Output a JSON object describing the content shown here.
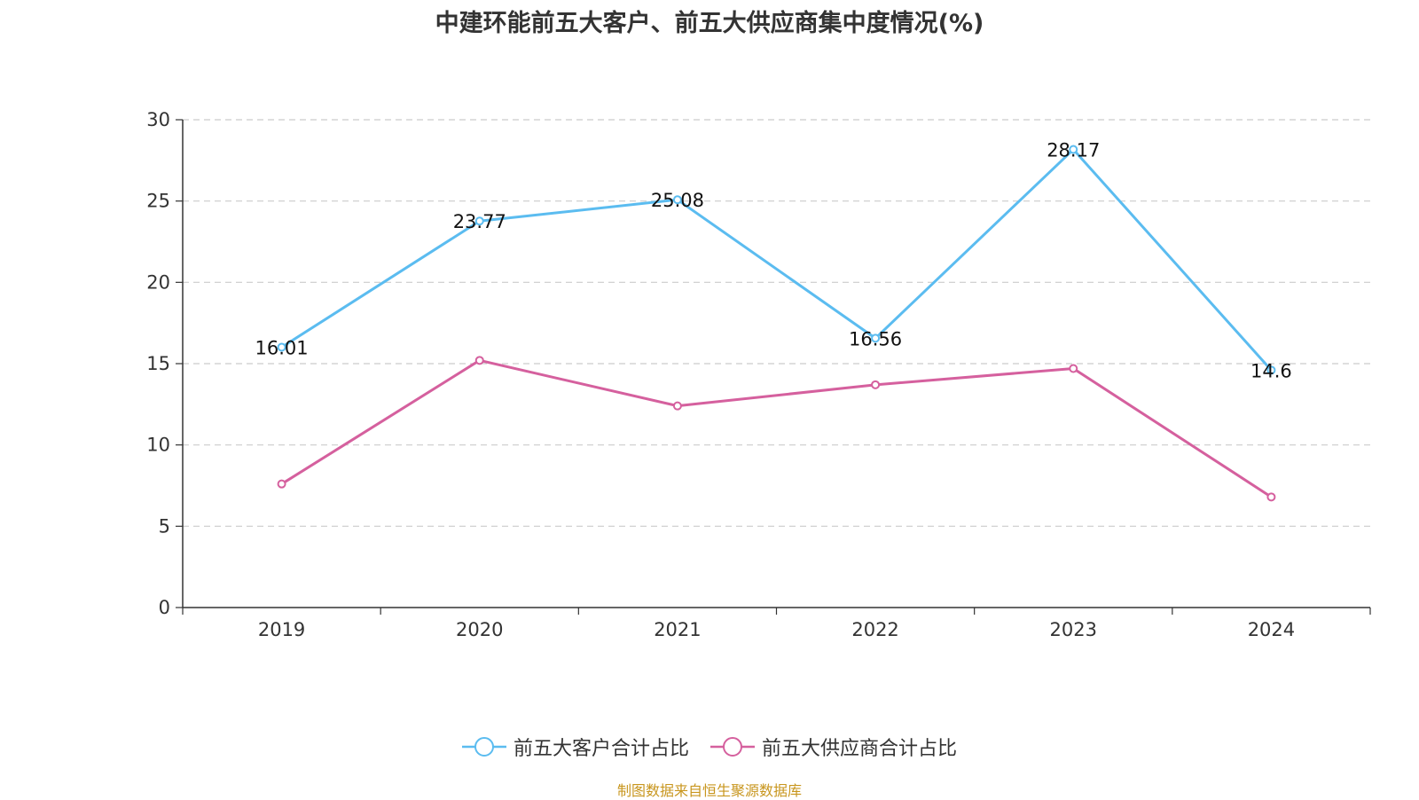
{
  "chart_data": {
    "type": "line",
    "title": "中建环能前五大客户、前五大供应商集中度情况(%)",
    "categories": [
      "2019",
      "2020",
      "2021",
      "2022",
      "2023",
      "2024"
    ],
    "ylim": [
      0,
      30
    ],
    "yticks": [
      0,
      5,
      10,
      15,
      20,
      25,
      30
    ],
    "grid": true,
    "legend_position": "bottom",
    "series": [
      {
        "name": "前五大客户合计占比",
        "color": "#5bbcf0",
        "values": [
          16.01,
          23.77,
          25.08,
          16.56,
          28.17,
          14.6
        ],
        "labels": [
          "16.01",
          "23.77",
          "25.08",
          "16.56",
          "28.17",
          "14.6"
        ]
      },
      {
        "name": "前五大供应商合计占比",
        "color": "#d5609e",
        "values": [
          7.6,
          15.2,
          12.4,
          13.7,
          14.7,
          6.8
        ]
      }
    ]
  },
  "source": "制图数据来自恒生聚源数据库"
}
